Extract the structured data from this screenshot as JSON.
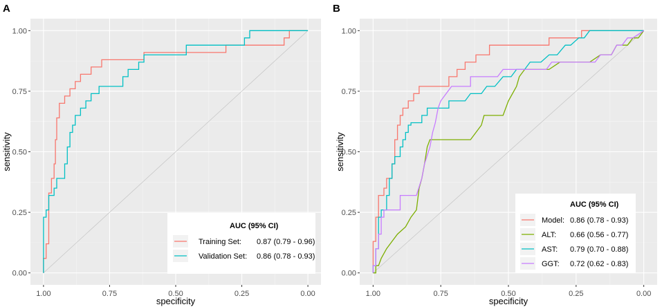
{
  "chart_data": [
    {
      "panel_label": "A",
      "type": "line",
      "xlabel": "specificity",
      "ylabel": "sensitivity",
      "xlim": [
        1.0,
        0.0
      ],
      "ylim": [
        0.0,
        1.0
      ],
      "x_ticks": [
        "1.00",
        "0.75",
        "0.50",
        "0.25",
        "0.00"
      ],
      "y_ticks": [
        "0.00",
        "0.25",
        "0.50",
        "0.75",
        "1.00"
      ],
      "legend_title": "AUC (95% CI)",
      "legend_position": "bottom-right",
      "series": [
        {
          "name": "Training Set:",
          "label": "0.87 (0.79 - 0.96)",
          "color": "#f8766d",
          "points": [
            [
              1.0,
              0.0
            ],
            [
              1.0,
              0.06
            ],
            [
              0.99,
              0.06
            ],
            [
              0.99,
              0.12
            ],
            [
              0.98,
              0.12
            ],
            [
              0.98,
              0.33
            ],
            [
              0.97,
              0.33
            ],
            [
              0.97,
              0.39
            ],
            [
              0.96,
              0.39
            ],
            [
              0.96,
              0.45
            ],
            [
              0.955,
              0.45
            ],
            [
              0.955,
              0.55
            ],
            [
              0.95,
              0.55
            ],
            [
              0.95,
              0.64
            ],
            [
              0.94,
              0.64
            ],
            [
              0.94,
              0.7
            ],
            [
              0.92,
              0.7
            ],
            [
              0.92,
              0.73
            ],
            [
              0.9,
              0.73
            ],
            [
              0.9,
              0.76
            ],
            [
              0.88,
              0.76
            ],
            [
              0.88,
              0.79
            ],
            [
              0.86,
              0.79
            ],
            [
              0.86,
              0.82
            ],
            [
              0.82,
              0.82
            ],
            [
              0.82,
              0.85
            ],
            [
              0.78,
              0.85
            ],
            [
              0.78,
              0.88
            ],
            [
              0.62,
              0.88
            ],
            [
              0.62,
              0.91
            ],
            [
              0.31,
              0.91
            ],
            [
              0.31,
              0.94
            ],
            [
              0.09,
              0.94
            ],
            [
              0.09,
              0.97
            ],
            [
              0.07,
              0.97
            ],
            [
              0.07,
              1.0
            ],
            [
              0.0,
              1.0
            ]
          ]
        },
        {
          "name": "Validation Set:",
          "label": "0.86 (0.78 - 0.93)",
          "color": "#00bfc4",
          "points": [
            [
              1.0,
              0.0
            ],
            [
              1.0,
              0.23
            ],
            [
              0.99,
              0.23
            ],
            [
              0.99,
              0.26
            ],
            [
              0.98,
              0.26
            ],
            [
              0.98,
              0.32
            ],
            [
              0.96,
              0.32
            ],
            [
              0.96,
              0.35
            ],
            [
              0.95,
              0.35
            ],
            [
              0.95,
              0.39
            ],
            [
              0.92,
              0.39
            ],
            [
              0.92,
              0.45
            ],
            [
              0.91,
              0.45
            ],
            [
              0.91,
              0.52
            ],
            [
              0.9,
              0.52
            ],
            [
              0.9,
              0.58
            ],
            [
              0.89,
              0.58
            ],
            [
              0.89,
              0.61
            ],
            [
              0.88,
              0.61
            ],
            [
              0.88,
              0.65
            ],
            [
              0.86,
              0.65
            ],
            [
              0.86,
              0.68
            ],
            [
              0.84,
              0.68
            ],
            [
              0.84,
              0.71
            ],
            [
              0.82,
              0.71
            ],
            [
              0.82,
              0.74
            ],
            [
              0.79,
              0.74
            ],
            [
              0.79,
              0.77
            ],
            [
              0.7,
              0.77
            ],
            [
              0.7,
              0.81
            ],
            [
              0.68,
              0.81
            ],
            [
              0.68,
              0.84
            ],
            [
              0.64,
              0.84
            ],
            [
              0.64,
              0.87
            ],
            [
              0.62,
              0.87
            ],
            [
              0.62,
              0.9
            ],
            [
              0.46,
              0.9
            ],
            [
              0.46,
              0.94
            ],
            [
              0.24,
              0.94
            ],
            [
              0.24,
              0.97
            ],
            [
              0.22,
              0.97
            ],
            [
              0.22,
              1.0
            ],
            [
              0.0,
              1.0
            ]
          ]
        }
      ]
    },
    {
      "panel_label": "B",
      "type": "line",
      "xlabel": "specificity",
      "ylabel": "sensitivity",
      "xlim": [
        1.0,
        0.0
      ],
      "ylim": [
        0.0,
        1.0
      ],
      "x_ticks": [
        "1.00",
        "0.75",
        "0.50",
        "0.25",
        "0.00"
      ],
      "y_ticks": [
        "0.00",
        "0.25",
        "0.50",
        "0.75",
        "1.00"
      ],
      "legend_title": "AUC (95% CI)",
      "legend_position": "bottom-right",
      "series": [
        {
          "name": "Model:",
          "label": "0.86 (0.78 - 0.93)",
          "color": "#f8766d",
          "points": [
            [
              1.0,
              0.0
            ],
            [
              1.0,
              0.13
            ],
            [
              0.99,
              0.13
            ],
            [
              0.99,
              0.23
            ],
            [
              0.98,
              0.23
            ],
            [
              0.98,
              0.32
            ],
            [
              0.96,
              0.32
            ],
            [
              0.96,
              0.35
            ],
            [
              0.95,
              0.35
            ],
            [
              0.95,
              0.39
            ],
            [
              0.93,
              0.39
            ],
            [
              0.93,
              0.45
            ],
            [
              0.92,
              0.45
            ],
            [
              0.92,
              0.55
            ],
            [
              0.91,
              0.55
            ],
            [
              0.91,
              0.61
            ],
            [
              0.9,
              0.61
            ],
            [
              0.9,
              0.65
            ],
            [
              0.89,
              0.65
            ],
            [
              0.89,
              0.68
            ],
            [
              0.87,
              0.68
            ],
            [
              0.87,
              0.71
            ],
            [
              0.85,
              0.71
            ],
            [
              0.85,
              0.74
            ],
            [
              0.83,
              0.74
            ],
            [
              0.83,
              0.77
            ],
            [
              0.72,
              0.77
            ],
            [
              0.72,
              0.81
            ],
            [
              0.69,
              0.81
            ],
            [
              0.69,
              0.84
            ],
            [
              0.66,
              0.84
            ],
            [
              0.66,
              0.87
            ],
            [
              0.62,
              0.87
            ],
            [
              0.62,
              0.9
            ],
            [
              0.57,
              0.9
            ],
            [
              0.57,
              0.94
            ],
            [
              0.35,
              0.94
            ],
            [
              0.35,
              0.97
            ],
            [
              0.23,
              0.97
            ],
            [
              0.23,
              1.0
            ],
            [
              0.0,
              1.0
            ]
          ]
        },
        {
          "name": "ALT:",
          "label": "0.66 (0.56 - 0.77)",
          "color": "#7cae00",
          "points": [
            [
              1.0,
              0.0
            ],
            [
              0.99,
              0.0
            ],
            [
              0.99,
              0.03
            ],
            [
              0.98,
              0.03
            ],
            [
              0.97,
              0.06
            ],
            [
              0.95,
              0.1
            ],
            [
              0.93,
              0.13
            ],
            [
              0.91,
              0.16
            ],
            [
              0.88,
              0.19
            ],
            [
              0.86,
              0.23
            ],
            [
              0.84,
              0.26
            ],
            [
              0.83,
              0.35
            ],
            [
              0.82,
              0.39
            ],
            [
              0.81,
              0.45
            ],
            [
              0.8,
              0.52
            ],
            [
              0.79,
              0.55
            ],
            [
              0.64,
              0.55
            ],
            [
              0.6,
              0.61
            ],
            [
              0.59,
              0.65
            ],
            [
              0.52,
              0.65
            ],
            [
              0.5,
              0.71
            ],
            [
              0.47,
              0.77
            ],
            [
              0.46,
              0.81
            ],
            [
              0.44,
              0.84
            ],
            [
              0.35,
              0.84
            ],
            [
              0.31,
              0.87
            ],
            [
              0.2,
              0.87
            ],
            [
              0.16,
              0.9
            ],
            [
              0.12,
              0.9
            ],
            [
              0.1,
              0.94
            ],
            [
              0.06,
              0.94
            ],
            [
              0.04,
              0.97
            ],
            [
              0.02,
              0.97
            ],
            [
              0.0,
              1.0
            ]
          ]
        },
        {
          "name": "AST:",
          "label": "0.79 (0.70 - 0.88)",
          "color": "#00bfc4",
          "points": [
            [
              1.0,
              0.0
            ],
            [
              1.0,
              0.03
            ],
            [
              0.99,
              0.03
            ],
            [
              0.99,
              0.1
            ],
            [
              0.98,
              0.1
            ],
            [
              0.98,
              0.23
            ],
            [
              0.97,
              0.23
            ],
            [
              0.97,
              0.26
            ],
            [
              0.95,
              0.26
            ],
            [
              0.95,
              0.32
            ],
            [
              0.94,
              0.32
            ],
            [
              0.94,
              0.39
            ],
            [
              0.93,
              0.39
            ],
            [
              0.93,
              0.45
            ],
            [
              0.92,
              0.45
            ],
            [
              0.92,
              0.48
            ],
            [
              0.9,
              0.48
            ],
            [
              0.9,
              0.52
            ],
            [
              0.89,
              0.52
            ],
            [
              0.89,
              0.55
            ],
            [
              0.88,
              0.55
            ],
            [
              0.88,
              0.58
            ],
            [
              0.87,
              0.58
            ],
            [
              0.87,
              0.61
            ],
            [
              0.86,
              0.61
            ],
            [
              0.86,
              0.62
            ],
            [
              0.82,
              0.62
            ],
            [
              0.82,
              0.65
            ],
            [
              0.8,
              0.65
            ],
            [
              0.8,
              0.68
            ],
            [
              0.72,
              0.68
            ],
            [
              0.72,
              0.71
            ],
            [
              0.66,
              0.71
            ],
            [
              0.64,
              0.74
            ],
            [
              0.6,
              0.74
            ],
            [
              0.58,
              0.77
            ],
            [
              0.55,
              0.77
            ],
            [
              0.52,
              0.81
            ],
            [
              0.49,
              0.81
            ],
            [
              0.47,
              0.84
            ],
            [
              0.44,
              0.84
            ],
            [
              0.42,
              0.87
            ],
            [
              0.38,
              0.87
            ],
            [
              0.35,
              0.9
            ],
            [
              0.32,
              0.9
            ],
            [
              0.29,
              0.94
            ],
            [
              0.27,
              0.94
            ],
            [
              0.24,
              0.97
            ],
            [
              0.22,
              0.97
            ],
            [
              0.2,
              1.0
            ],
            [
              0.0,
              1.0
            ]
          ]
        },
        {
          "name": "GGT:",
          "label": "0.72 (0.62 - 0.83)",
          "color": "#c77cff",
          "points": [
            [
              1.0,
              0.0
            ],
            [
              1.0,
              0.03
            ],
            [
              0.99,
              0.03
            ],
            [
              0.99,
              0.1
            ],
            [
              0.98,
              0.1
            ],
            [
              0.98,
              0.16
            ],
            [
              0.97,
              0.16
            ],
            [
              0.97,
              0.23
            ],
            [
              0.96,
              0.23
            ],
            [
              0.96,
              0.26
            ],
            [
              0.9,
              0.26
            ],
            [
              0.9,
              0.32
            ],
            [
              0.84,
              0.32
            ],
            [
              0.82,
              0.39
            ],
            [
              0.81,
              0.45
            ],
            [
              0.79,
              0.52
            ],
            [
              0.78,
              0.58
            ],
            [
              0.77,
              0.62
            ],
            [
              0.76,
              0.68
            ],
            [
              0.75,
              0.71
            ],
            [
              0.73,
              0.74
            ],
            [
              0.71,
              0.77
            ],
            [
              0.64,
              0.77
            ],
            [
              0.64,
              0.81
            ],
            [
              0.54,
              0.81
            ],
            [
              0.52,
              0.84
            ],
            [
              0.36,
              0.84
            ],
            [
              0.34,
              0.87
            ],
            [
              0.18,
              0.87
            ],
            [
              0.16,
              0.9
            ],
            [
              0.12,
              0.9
            ],
            [
              0.1,
              0.94
            ],
            [
              0.08,
              0.94
            ],
            [
              0.06,
              0.97
            ],
            [
              0.04,
              0.97
            ],
            [
              0.0,
              1.0
            ]
          ]
        }
      ]
    }
  ]
}
